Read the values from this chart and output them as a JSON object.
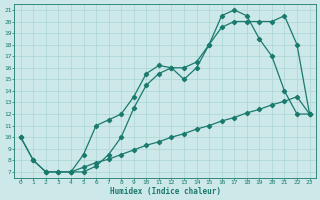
{
  "xlabel": "Humidex (Indice chaleur)",
  "bg_color": "#cde8e8",
  "line_color": "#1a7a6e",
  "grid_color": "#b0d8d8",
  "xlim": [
    -0.5,
    23.5
  ],
  "ylim": [
    6.5,
    21.5
  ],
  "xticks": [
    0,
    1,
    2,
    3,
    4,
    5,
    6,
    7,
    8,
    9,
    10,
    11,
    12,
    13,
    14,
    15,
    16,
    17,
    18,
    19,
    20,
    21,
    22,
    23
  ],
  "yticks": [
    7,
    8,
    9,
    10,
    11,
    12,
    13,
    14,
    15,
    16,
    17,
    18,
    19,
    20,
    21
  ],
  "line1_x": [
    0,
    1,
    2,
    3,
    4,
    5,
    6,
    7,
    8,
    9,
    10,
    11,
    12,
    13,
    14,
    15,
    16,
    17,
    18,
    19,
    20,
    21,
    22,
    23
  ],
  "line1_y": [
    10,
    8,
    7,
    7,
    7,
    7.4,
    7.8,
    8.1,
    8.5,
    8.9,
    9.3,
    9.6,
    10.0,
    10.3,
    10.7,
    11.0,
    11.4,
    11.7,
    12.1,
    12.4,
    12.8,
    13.1,
    13.5,
    12
  ],
  "line2_x": [
    0,
    1,
    2,
    3,
    4,
    5,
    6,
    7,
    8,
    9,
    10,
    11,
    12,
    13,
    14,
    15,
    16,
    17,
    18,
    19,
    20,
    21,
    22,
    23
  ],
  "line2_y": [
    10,
    8,
    7,
    7,
    7,
    8.5,
    11,
    11.5,
    12,
    13.5,
    15.5,
    16.2,
    16,
    15,
    16,
    18,
    20.5,
    21,
    20.5,
    18.5,
    17,
    14,
    12,
    12
  ],
  "line3_x": [
    4,
    5,
    6,
    7,
    8,
    9,
    10,
    11,
    12,
    13,
    14,
    15,
    16,
    17,
    18,
    19,
    20,
    21,
    22,
    23
  ],
  "line3_y": [
    7,
    7,
    7.5,
    8.5,
    10,
    12.5,
    14.5,
    15.5,
    16,
    16,
    16.5,
    18,
    19.5,
    20,
    20,
    20,
    20,
    20.5,
    18,
    12
  ]
}
